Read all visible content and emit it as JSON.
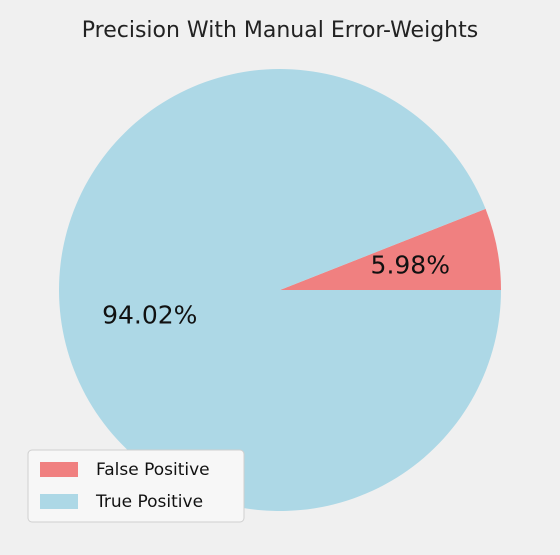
{
  "chart_data": {
    "type": "pie",
    "title": "Precision With Manual Error-Weights",
    "slices": [
      {
        "label": "False Positive",
        "value": 5.98,
        "display": "5.98%",
        "color": "#f08080"
      },
      {
        "label": "True Positive",
        "value": 94.02,
        "display": "94.02%",
        "color": "#add8e6"
      }
    ],
    "start_angle_deg": 0,
    "direction": "counterclockwise",
    "legend_placement": "lower-left",
    "background": "#f0f0f0"
  }
}
